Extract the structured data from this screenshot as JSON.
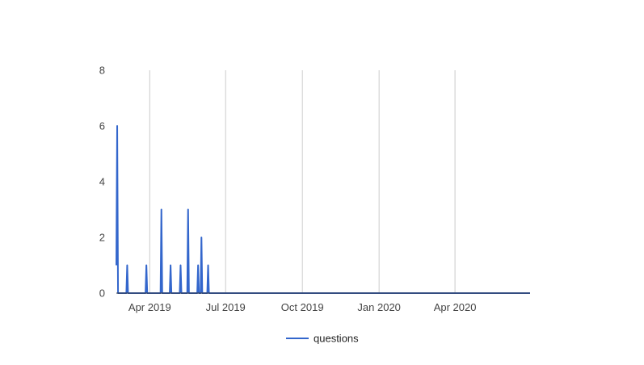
{
  "chart_data": {
    "type": "line",
    "title": "",
    "xlabel": "",
    "ylabel": "",
    "ylim": [
      0,
      8
    ],
    "yticks": [
      0,
      2,
      4,
      6,
      8
    ],
    "xlim": [
      "2019-02-20",
      "2020-06-30"
    ],
    "xticks": [
      {
        "date": "2019-04-01",
        "label": "Apr 2019"
      },
      {
        "date": "2019-07-01",
        "label": "Jul 2019"
      },
      {
        "date": "2019-10-01",
        "label": "Oct 2019"
      },
      {
        "date": "2020-01-01",
        "label": "Jan 2020"
      },
      {
        "date": "2020-04-01",
        "label": "Apr 2020"
      }
    ],
    "grid": {
      "vertical": true,
      "horizontal": false
    },
    "legend": {
      "position": "bottom",
      "entries": [
        "questions"
      ]
    },
    "series": [
      {
        "name": "questions",
        "color": "#3366cc",
        "points": [
          {
            "x": "2019-02-20",
            "y": 1
          },
          {
            "x": "2019-02-21",
            "y": 6
          },
          {
            "x": "2019-02-22",
            "y": 0
          },
          {
            "x": "2019-03-04",
            "y": 0
          },
          {
            "x": "2019-03-05",
            "y": 1
          },
          {
            "x": "2019-03-06",
            "y": 0
          },
          {
            "x": "2019-03-27",
            "y": 0
          },
          {
            "x": "2019-03-28",
            "y": 1
          },
          {
            "x": "2019-03-29",
            "y": 0
          },
          {
            "x": "2019-04-14",
            "y": 0
          },
          {
            "x": "2019-04-15",
            "y": 3
          },
          {
            "x": "2019-04-16",
            "y": 0
          },
          {
            "x": "2019-04-25",
            "y": 0
          },
          {
            "x": "2019-04-26",
            "y": 1
          },
          {
            "x": "2019-04-27",
            "y": 0
          },
          {
            "x": "2019-05-07",
            "y": 0
          },
          {
            "x": "2019-05-08",
            "y": 1
          },
          {
            "x": "2019-05-09",
            "y": 0
          },
          {
            "x": "2019-05-16",
            "y": 0
          },
          {
            "x": "2019-05-17",
            "y": 3
          },
          {
            "x": "2019-05-18",
            "y": 0
          },
          {
            "x": "2019-05-28",
            "y": 0
          },
          {
            "x": "2019-05-29",
            "y": 1
          },
          {
            "x": "2019-05-30",
            "y": 0
          },
          {
            "x": "2019-06-01",
            "y": 0
          },
          {
            "x": "2019-06-02",
            "y": 2
          },
          {
            "x": "2019-06-03",
            "y": 0
          },
          {
            "x": "2019-06-09",
            "y": 0
          },
          {
            "x": "2019-06-10",
            "y": 1
          },
          {
            "x": "2019-06-11",
            "y": 0
          },
          {
            "x": "2020-06-30",
            "y": 0
          }
        ]
      }
    ]
  }
}
